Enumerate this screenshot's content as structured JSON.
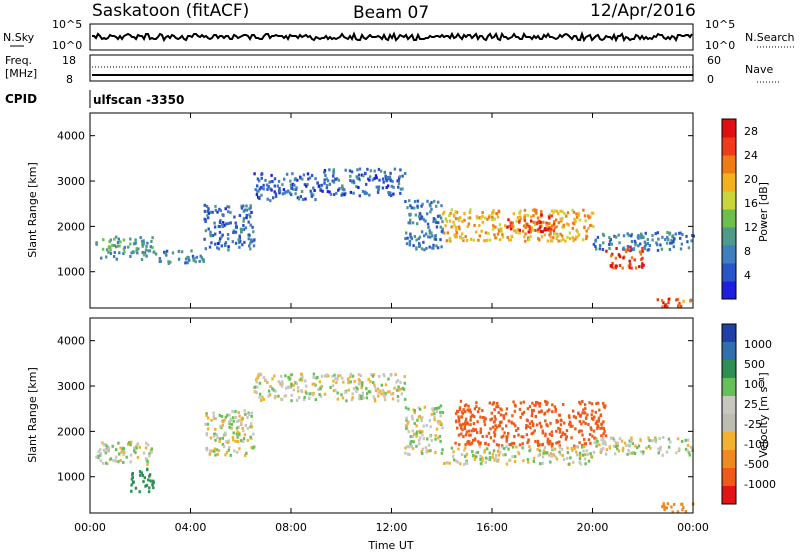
{
  "header": {
    "site": "Saskatoon (fitACF)",
    "beam": "Beam 07",
    "date": "12/Apr/2016"
  },
  "strip": {
    "nsky_label": "N.Sky",
    "nsearch_label": "N.Search",
    "nave_label": "Nave",
    "freq_label_line1": "Freq.",
    "freq_label_line2": "[MHz]",
    "cpid_label": "CPID",
    "cpid_value": "ulfscan -3350",
    "noise_left_ticks": [
      "10^5",
      "10^0"
    ],
    "noise_right_ticks": [
      "10^5",
      "10^0"
    ],
    "freq_left_ticks": [
      "18",
      "8"
    ],
    "freq_right_ticks": [
      "60",
      "0"
    ]
  },
  "colors": {
    "power_scale": [
      "#1f1fe0",
      "#2a55c8",
      "#3f7fbf",
      "#4f9a8a",
      "#6cbf4a",
      "#c9d63b",
      "#f5b01e",
      "#f07a14",
      "#ee3c1a",
      "#e01010"
    ],
    "velocity_scale": [
      "#1e40a8",
      "#2f6fb0",
      "#2e8f55",
      "#66c05a",
      "#c7c7c0",
      "#bdbdb4",
      "#f2b230",
      "#f08a20",
      "#ef5a18",
      "#e51414"
    ]
  },
  "chart_data": [
    {
      "type": "heatmap",
      "name": "Power",
      "ylabel": "Slant Range [km]",
      "xlabel": "Time UT",
      "x_ticks": [
        "00:00",
        "04:00",
        "08:00",
        "12:00",
        "16:00",
        "20:00",
        "00:00"
      ],
      "y_ticks": [
        1000,
        2000,
        3000,
        4000
      ],
      "ylim": [
        200,
        4500
      ],
      "xlim_hours": [
        0,
        24
      ],
      "colorbar": {
        "label": "Power [dB]",
        "ticks": [
          4,
          8,
          12,
          16,
          20,
          24,
          28
        ],
        "range": [
          0,
          30
        ]
      },
      "echo_bands": [
        {
          "time_h": [
            0.2,
            2.5
          ],
          "range_km": [
            1300,
            1800
          ],
          "value_db": 10
        },
        {
          "time_h": [
            2.5,
            4.5
          ],
          "range_km": [
            1200,
            1500
          ],
          "value_db": 8
        },
        {
          "time_h": [
            4.5,
            6.5
          ],
          "range_km": [
            1500,
            2500
          ],
          "value_db": 6
        },
        {
          "time_h": [
            6.5,
            9.0
          ],
          "range_km": [
            2600,
            3200
          ],
          "value_db": 6
        },
        {
          "time_h": [
            9.0,
            12.5
          ],
          "range_km": [
            2700,
            3300
          ],
          "value_db": 6
        },
        {
          "time_h": [
            12.5,
            14.0
          ],
          "range_km": [
            1500,
            2600
          ],
          "value_db": 8
        },
        {
          "time_h": [
            14.0,
            20.0
          ],
          "range_km": [
            1700,
            2400
          ],
          "value_db": 20
        },
        {
          "time_h": [
            16.5,
            18.5
          ],
          "range_km": [
            1900,
            2300
          ],
          "value_db": 26
        },
        {
          "time_h": [
            20.5,
            22.0
          ],
          "range_km": [
            1100,
            1600
          ],
          "value_db": 26
        },
        {
          "time_h": [
            20.0,
            24.0
          ],
          "range_km": [
            1500,
            1900
          ],
          "value_db": 8
        },
        {
          "time_h": [
            22.5,
            24.0
          ],
          "range_km": [
            250,
            450
          ],
          "value_db": 24
        }
      ]
    },
    {
      "type": "heatmap",
      "name": "Velocity",
      "ylabel": "Slant Range [km]",
      "xlabel": "Time UT",
      "x_ticks": [
        "00:00",
        "04:00",
        "08:00",
        "12:00",
        "16:00",
        "20:00",
        "00:00"
      ],
      "y_ticks": [
        1000,
        2000,
        3000,
        4000
      ],
      "ylim": [
        200,
        4500
      ],
      "xlim_hours": [
        0,
        24
      ],
      "colorbar": {
        "label": "Velocity [m s⁻¹]",
        "ticks": [
          "1000",
          "500",
          "100",
          "25",
          "-25",
          "-100",
          "-500",
          "-1000"
        ]
      },
      "echo_bands": [
        {
          "time_h": [
            0.2,
            2.5
          ],
          "range_km": [
            1300,
            1800
          ],
          "value_ms": 0
        },
        {
          "time_h": [
            1.5,
            2.5
          ],
          "range_km": [
            700,
            1200
          ],
          "value_ms": 400
        },
        {
          "time_h": [
            4.5,
            6.5
          ],
          "range_km": [
            1500,
            2500
          ],
          "value_ms": 0
        },
        {
          "time_h": [
            6.5,
            12.5
          ],
          "range_km": [
            2700,
            3300
          ],
          "value_ms": 0
        },
        {
          "time_h": [
            12.5,
            14.0
          ],
          "range_km": [
            1500,
            2600
          ],
          "value_ms": 0
        },
        {
          "time_h": [
            14.5,
            20.5
          ],
          "range_km": [
            1700,
            2700
          ],
          "value_ms": -700
        },
        {
          "time_h": [
            14.0,
            20.0
          ],
          "range_km": [
            1300,
            1700
          ],
          "value_ms": 0
        },
        {
          "time_h": [
            20.0,
            24.0
          ],
          "range_km": [
            1500,
            1900
          ],
          "value_ms": 0
        },
        {
          "time_h": [
            22.5,
            24.0
          ],
          "range_km": [
            250,
            450
          ],
          "value_ms": -200
        }
      ]
    }
  ]
}
